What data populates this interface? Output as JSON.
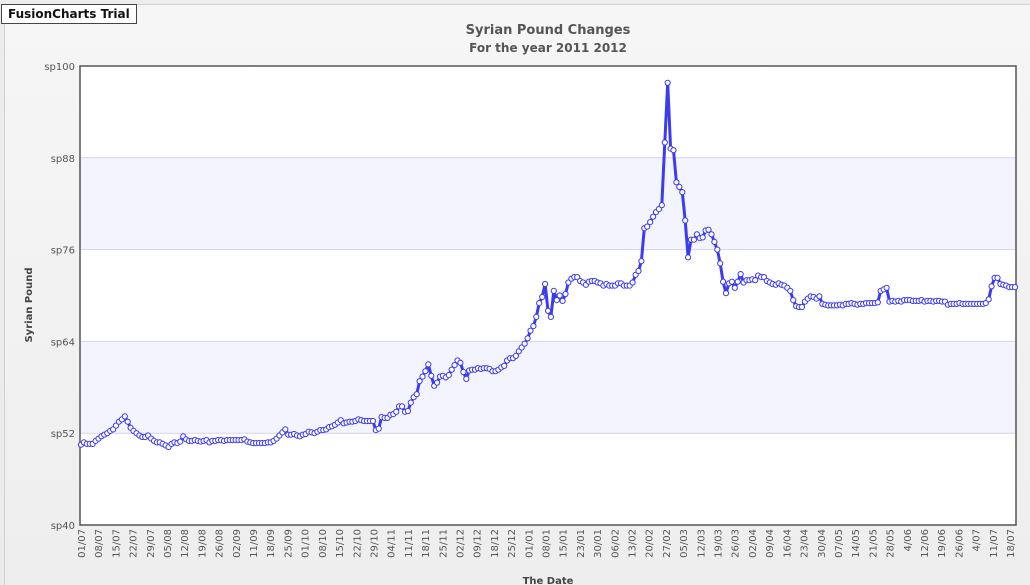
{
  "trial_badge": "FusionCharts Trial",
  "colors": {
    "line": "#3b3bf0",
    "marker_fill": "#ffffff",
    "band": "#f4f4ff",
    "grid": "#d4d4ee",
    "plot_border": "#555555"
  },
  "chart_data": {
    "type": "line",
    "title": "Syrian Pound Changes",
    "subtitle": "For the year 2011 2012",
    "xlabel": "The Date",
    "ylabel": "Syrian Pound",
    "ylim": [
      40,
      100
    ],
    "y_ticks": [
      "sp40",
      "sp52",
      "sp64",
      "sp76",
      "sp88",
      "sp100"
    ],
    "grid": true,
    "x_tick_labels": [
      "01/07",
      "08/07",
      "15/07",
      "22/07",
      "29/07",
      "05/08",
      "12/08",
      "19/08",
      "26/08",
      "02/09",
      "11/09",
      "18/09",
      "25/09",
      "01/10",
      "08/10",
      "15/10",
      "22/10",
      "29/10",
      "04/11",
      "11/11",
      "18/11",
      "25/11",
      "02/12",
      "09/12",
      "18/12",
      "25/12",
      "01/01",
      "08/01",
      "15/01",
      "23/01",
      "30/01",
      "06/02",
      "13/02",
      "20/02",
      "27/02",
      "05/03",
      "12/03",
      "19/03",
      "26/03",
      "02/04",
      "09/04",
      "16/04",
      "23/04",
      "30/04",
      "07/05",
      "14/05",
      "21/05",
      "28/05",
      "4/06",
      "12/06",
      "19/06",
      "26/06",
      "4/07",
      "11/07",
      "18/07"
    ],
    "series": [
      {
        "values": [
          50.5,
          50.8,
          50.6,
          50.6,
          50.6,
          51.0,
          51.3,
          51.6,
          51.8,
          52.0,
          52.3,
          52.5,
          53.0,
          53.5,
          53.8,
          54.2,
          53.5,
          52.7,
          52.3,
          52.0,
          51.7,
          51.5,
          51.5,
          51.7,
          51.3,
          51.0,
          50.8,
          50.8,
          50.6,
          50.4,
          50.2,
          50.6,
          50.8,
          50.7,
          50.9,
          51.6,
          51.2,
          51.0,
          51.0,
          51.1,
          51.0,
          50.9,
          51.0,
          51.1,
          50.8,
          51.0,
          51.0,
          51.1,
          51.1,
          51.0,
          51.1,
          51.1,
          51.1,
          51.1,
          51.1,
          51.1,
          51.2,
          50.9,
          50.8,
          50.7,
          50.7,
          50.7,
          50.7,
          50.7,
          50.8,
          50.8,
          51.0,
          51.3,
          51.7,
          52.1,
          52.5,
          51.8,
          51.8,
          51.9,
          51.7,
          51.6,
          51.8,
          51.9,
          52.2,
          52.1,
          52.0,
          52.2,
          52.4,
          52.4,
          52.5,
          52.8,
          52.9,
          53.1,
          53.4,
          53.7,
          53.3,
          53.4,
          53.5,
          53.5,
          53.6,
          53.8,
          53.7,
          53.6,
          53.6,
          53.6,
          53.6,
          52.4,
          52.6,
          54.1,
          54.0,
          54.0,
          54.4,
          54.5,
          54.8,
          55.5,
          55.5,
          54.8,
          54.9,
          56.0,
          56.7,
          57.1,
          58.8,
          59.4,
          60.1,
          61.0,
          59.5,
          58.2,
          58.6,
          59.4,
          59.5,
          59.3,
          59.6,
          60.3,
          60.9,
          61.5,
          61.2,
          60.0,
          59.1,
          60.2,
          60.3,
          60.3,
          60.5,
          60.4,
          60.5,
          60.5,
          60.4,
          60.1,
          60.1,
          60.3,
          60.6,
          60.8,
          61.5,
          61.8,
          61.8,
          62.1,
          62.7,
          63.2,
          63.7,
          64.4,
          65.4,
          66.0,
          67.2,
          69.0,
          69.8,
          71.5,
          68.0,
          67.2,
          70.6,
          69.4,
          70.0,
          69.3,
          70.2,
          71.7,
          72.2,
          72.4,
          72.4,
          71.9,
          71.7,
          71.4,
          71.8,
          71.9,
          71.9,
          71.7,
          71.6,
          71.3,
          71.5,
          71.3,
          71.3,
          71.3,
          71.6,
          71.6,
          71.3,
          71.3,
          71.3,
          71.7,
          72.7,
          73.2,
          74.5,
          78.8,
          79.0,
          79.6,
          80.3,
          80.9,
          81.3,
          81.8,
          90.0,
          97.8,
          89.2,
          89.0,
          84.8,
          84.2,
          83.5,
          79.8,
          75.0,
          77.3,
          77.3,
          78.0,
          77.5,
          77.6,
          78.5,
          78.6,
          78.0,
          77.0,
          76.0,
          74.2,
          71.8,
          70.3,
          71.6,
          71.8,
          71.0,
          71.8,
          72.8,
          71.7,
          72.0,
          72.0,
          72.1,
          72.0,
          72.6,
          72.4,
          72.4,
          71.9,
          71.7,
          71.5,
          71.4,
          71.6,
          71.4,
          71.3,
          71.0,
          70.6,
          69.4,
          68.6,
          68.5,
          68.5,
          69.2,
          69.6,
          69.9,
          69.8,
          69.6,
          69.9,
          68.9,
          68.8,
          68.7,
          68.7,
          68.7,
          68.7,
          68.8,
          68.7,
          68.9,
          68.9,
          69.0,
          68.9,
          68.8,
          68.9,
          68.9,
          69.0,
          69.0,
          69.0,
          69.0,
          69.1,
          70.6,
          70.8,
          71.0,
          69.2,
          69.3,
          69.2,
          69.3,
          69.2,
          69.4,
          69.4,
          69.4,
          69.3,
          69.3,
          69.3,
          69.4,
          69.2,
          69.3,
          69.3,
          69.2,
          69.3,
          69.3,
          69.2,
          69.2,
          68.8,
          68.9,
          68.9,
          68.9,
          69.0,
          68.9,
          68.9,
          68.9,
          68.9,
          68.9,
          68.9,
          68.9,
          68.9,
          69.0,
          69.5,
          71.2,
          72.3,
          72.3,
          71.5,
          71.4,
          71.3,
          71.1,
          71.1,
          71.1
        ]
      }
    ]
  }
}
